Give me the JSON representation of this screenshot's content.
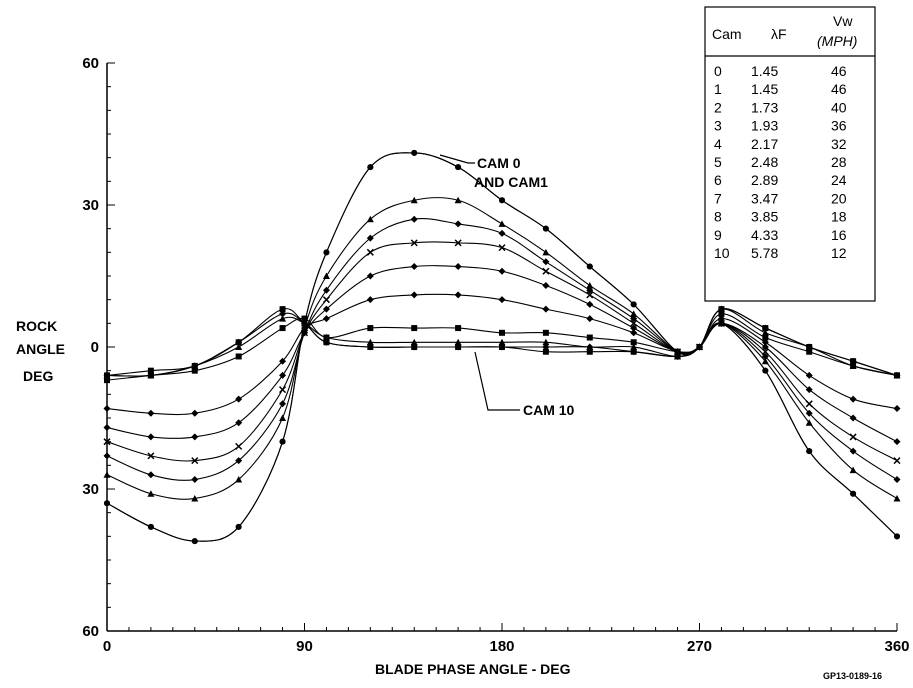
{
  "chart_data": {
    "type": "line",
    "xlabel": "BLADE PHASE ANGLE - DEG",
    "ylabel_lines": [
      "ROCK",
      "ANGLE",
      "DEG"
    ],
    "x_ticks": [
      0,
      90,
      180,
      270,
      360
    ],
    "x_tick_labels": [
      "0",
      "90",
      "180",
      "270",
      "360"
    ],
    "y_ticks": [
      60,
      30,
      0,
      -30,
      -60
    ],
    "y_tick_labels": [
      "60",
      "30",
      "0",
      "30",
      "60"
    ],
    "xlim": [
      0,
      360
    ],
    "ylim": [
      -60,
      60
    ],
    "grid": false,
    "x": [
      0,
      20,
      40,
      60,
      80,
      90,
      100,
      120,
      140,
      160,
      180,
      200,
      220,
      240,
      260,
      270,
      280,
      300,
      320,
      340,
      360
    ],
    "series": [
      {
        "name": "0",
        "values": [
          -33,
          -38,
          -41,
          -38,
          -20,
          5,
          20,
          38,
          41,
          38,
          31,
          25,
          17,
          9,
          -1,
          0,
          5,
          -5,
          -22,
          -31,
          -40
        ]
      },
      {
        "name": "1",
        "values": [
          -33,
          -38,
          -41,
          -38,
          -20,
          5,
          20,
          38,
          41,
          38,
          31,
          25,
          17,
          9,
          -1,
          0,
          5,
          -5,
          -22,
          -31,
          -40
        ]
      },
      {
        "name": "2",
        "values": [
          -27,
          -31,
          -32,
          -28,
          -15,
          4,
          15,
          27,
          31,
          31,
          26,
          20,
          13,
          7,
          -1,
          0,
          5,
          -3,
          -16,
          -26,
          -32
        ]
      },
      {
        "name": "3",
        "values": [
          -23,
          -27,
          -28,
          -24,
          -12,
          3,
          12,
          23,
          27,
          26,
          24,
          18,
          12,
          6,
          -1,
          0,
          5,
          -2,
          -14,
          -22,
          -28
        ]
      },
      {
        "name": "4",
        "values": [
          -20,
          -23,
          -24,
          -21,
          -9,
          3,
          10,
          20,
          22,
          22,
          21,
          16,
          11,
          5,
          -1,
          0,
          5,
          -1,
          -12,
          -19,
          -24
        ]
      },
      {
        "name": "5",
        "values": [
          -17,
          -19,
          -19,
          -16,
          -6,
          3,
          8,
          15,
          17,
          17,
          16,
          13,
          9,
          4,
          -1,
          0,
          5,
          0,
          -9,
          -15,
          -20
        ]
      },
      {
        "name": "6",
        "values": [
          -13,
          -14,
          -14,
          -11,
          -3,
          4,
          6,
          10,
          11,
          11,
          10,
          8,
          6,
          3,
          -1,
          0,
          6,
          1,
          -6,
          -11,
          -13
        ]
      },
      {
        "name": "7",
        "values": [
          -7,
          -6,
          -5,
          -2,
          4,
          6,
          2,
          4,
          4,
          4,
          3,
          3,
          2,
          1,
          -1,
          0,
          7,
          2,
          -1,
          -4,
          -6
        ]
      },
      {
        "name": "8",
        "values": [
          -6,
          -6,
          -4,
          0,
          6,
          5,
          2,
          1,
          1,
          1,
          1,
          1,
          0,
          0,
          -2,
          0,
          8,
          3,
          0,
          -4,
          -6
        ]
      },
      {
        "name": "9",
        "values": [
          -6,
          -6,
          -4,
          1,
          7,
          5,
          1,
          0,
          0,
          0,
          0,
          0,
          0,
          -1,
          -2,
          0,
          8,
          4,
          0,
          -3,
          -6
        ]
      },
      {
        "name": "10",
        "values": [
          -6,
          -5,
          -4,
          1,
          8,
          5,
          1,
          0,
          0,
          0,
          0,
          -1,
          -1,
          -1,
          -2,
          0,
          8,
          4,
          0,
          -3,
          -6
        ]
      }
    ],
    "annotations": [
      {
        "text_lines": [
          "CAM 0",
          "AND CAM1"
        ]
      },
      {
        "text_lines": [
          "CAM 10"
        ]
      }
    ],
    "figure_id": "GP13-0189-16",
    "table": {
      "headers": [
        "Cam",
        "λF",
        "Vw",
        "(MPH)"
      ],
      "rows": [
        [
          "0",
          "1.45",
          "46"
        ],
        [
          "1",
          "1.45",
          "46"
        ],
        [
          "2",
          "1.73",
          "40"
        ],
        [
          "3",
          "1.93",
          "36"
        ],
        [
          "4",
          "2.17",
          "32"
        ],
        [
          "5",
          "2.48",
          "28"
        ],
        [
          "6",
          "2.89",
          "24"
        ],
        [
          "7",
          "3.47",
          "20"
        ],
        [
          "8",
          "3.85",
          "18"
        ],
        [
          "9",
          "4.33",
          "16"
        ],
        [
          "10",
          "5.78",
          "12"
        ]
      ]
    }
  }
}
